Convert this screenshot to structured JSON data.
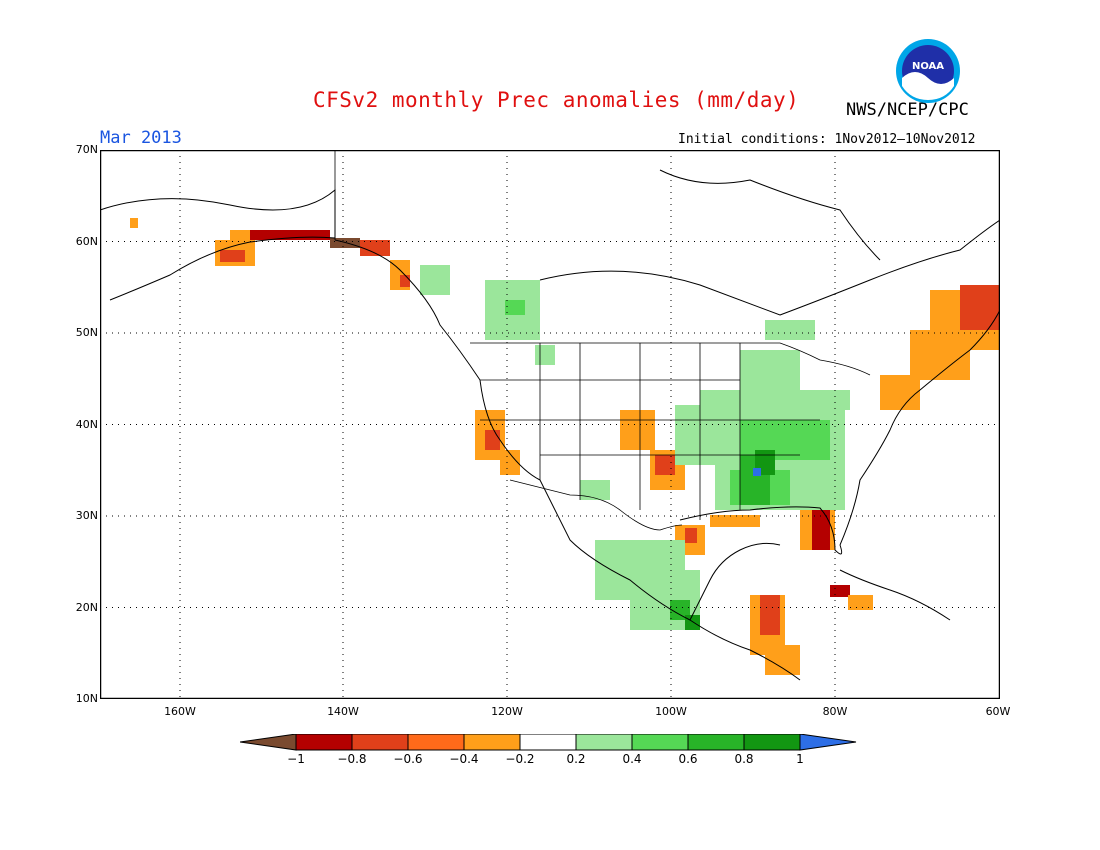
{
  "header": {
    "title": "CFSv2 monthly Prec anomalies (mm/day)",
    "agency": "NWS/NCEP/CPC",
    "month": "Mar 2013",
    "initial_conditions": "Initial conditions: 1Nov2012—10Nov2012",
    "logo_text": "NOAA"
  },
  "map": {
    "lat_labels": [
      "70N",
      "60N",
      "50N",
      "40N",
      "30N",
      "20N",
      "10N"
    ],
    "lon_labels": [
      "160W",
      "140W",
      "120W",
      "100W",
      "80W",
      "60W"
    ],
    "extent": {
      "lon": [
        -172,
        -60
      ],
      "lat": [
        10,
        70
      ]
    },
    "grid": true,
    "legend_placement": "bottom"
  },
  "colorbar": {
    "labels": [
      "−1",
      "−0.8",
      "−0.6",
      "−0.4",
      "−0.2",
      "0.2",
      "0.4",
      "0.6",
      "0.8",
      "1"
    ],
    "colors": [
      "#7a4a2f",
      "#b40000",
      "#e0401a",
      "#ff6a1a",
      "#ff9f1a",
      "#ffffff",
      "#9be69b",
      "#55d855",
      "#28b428",
      "#129612",
      "#2d6ee6"
    ]
  }
}
